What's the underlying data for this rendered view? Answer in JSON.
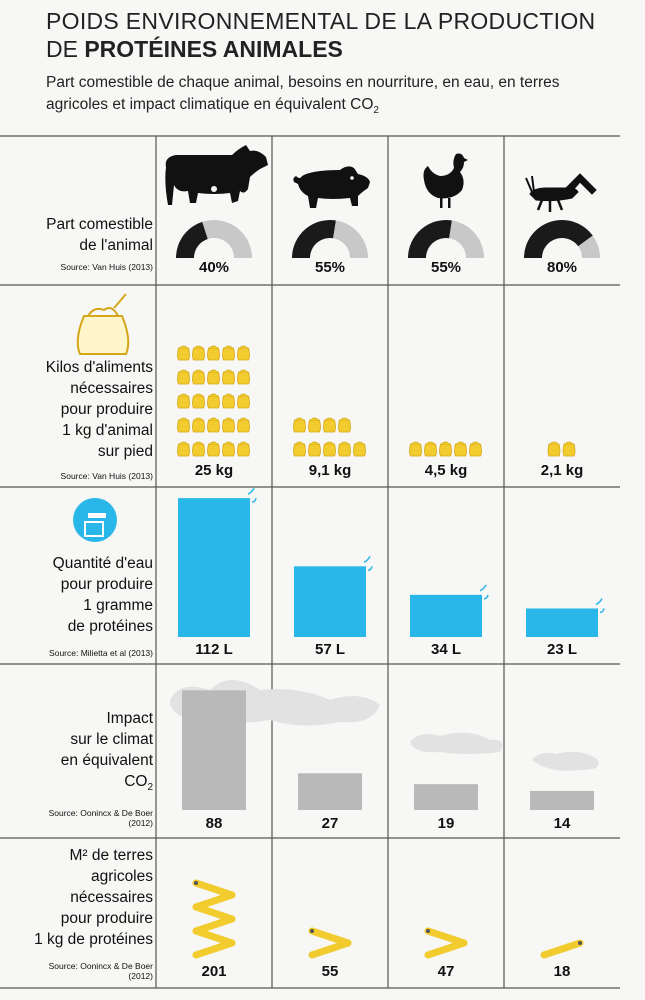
{
  "title_line1": "POIDS ENVIRONNEMENTAL DE LA PRODUCTION",
  "title_line2_prefix": "DE ",
  "title_line2_bold": "PROTÉINES ANIMALES",
  "subtitle_main": "Part comestible de chaque animal, besoins en nourriture, en eau, en terres agricoles et impact climatique en équivalent CO",
  "subtitle_sub": "2",
  "colors": {
    "water": "#29b6e8",
    "feed": "#f2cc2e",
    "feed_outline": "#d6a619",
    "climate": "#b9b9b9",
    "edible": "#1a1a1a",
    "nonedible": "#c8c8c8",
    "ruler": "#f2cc2e",
    "grid": "#555555"
  },
  "animals": [
    {
      "icon": "cow-icon"
    },
    {
      "icon": "pig-icon"
    },
    {
      "icon": "chicken-icon"
    },
    {
      "icon": "cricket-icon"
    }
  ],
  "rows": {
    "edible": {
      "label_lines": [
        "Part comestible",
        "de l'animal"
      ],
      "source": "Source: Van Huis (2013)",
      "icon": "gauge-icon"
    },
    "feed": {
      "label_lines": [
        "Kilos d'aliments",
        "nécessaires",
        "pour produire",
        "1 kg d'animal",
        "sur pied"
      ],
      "source": "Source: Van Huis (2013)",
      "icon": "feed-sack-icon"
    },
    "water": {
      "label_lines": [
        "Quantité d'eau",
        "pour produire",
        "1 gramme",
        "de protéines"
      ],
      "source": "Source: Milietta et al (2013)",
      "icon": "water-tap-icon"
    },
    "climate": {
      "label_lines": [
        "Impact",
        "sur le climat",
        "en équivalent",
        "CO"
      ],
      "label_sub": "2",
      "source_lines": [
        "Source: Oonincx & De Boer",
        "(2012)"
      ],
      "icon": "cloud-icon"
    },
    "land": {
      "label_lines": [
        "M² de terres",
        "agricoles",
        "nécessaires",
        "pour produire",
        "1 kg de protéines"
      ],
      "source_lines": [
        "Source: Oonincx & De Boer",
        "(2012)"
      ],
      "icon": "folding-ruler-icon"
    }
  },
  "chart_data": [
    {
      "type": "pie",
      "title": "Part comestible de l'animal",
      "categories": [
        "vache",
        "porc",
        "poulet",
        "grillon"
      ],
      "values": [
        40,
        55,
        55,
        80
      ],
      "labels": [
        "40%",
        "55%",
        "55%",
        "80%"
      ],
      "unit": "%"
    },
    {
      "type": "bar",
      "title": "Kilos d'aliments nécessaires pour produire 1 kg d'animal sur pied",
      "categories": [
        "vache",
        "porc",
        "poulet",
        "grillon"
      ],
      "values": [
        25,
        9.1,
        4.5,
        2.1
      ],
      "labels": [
        "25 kg",
        "9,1 kg",
        "4,5 kg",
        "2,1 kg"
      ],
      "unit": "kg"
    },
    {
      "type": "bar",
      "title": "Quantité d'eau pour produire 1 gramme de protéines",
      "categories": [
        "vache",
        "porc",
        "poulet",
        "grillon"
      ],
      "values": [
        112,
        57,
        34,
        23
      ],
      "labels": [
        "112 L",
        "57 L",
        "34 L",
        "23 L"
      ],
      "unit": "L"
    },
    {
      "type": "bar",
      "title": "Impact sur le climat en équivalent CO2",
      "categories": [
        "vache",
        "porc",
        "poulet",
        "grillon"
      ],
      "values": [
        88,
        27,
        19,
        14
      ],
      "labels": [
        "88",
        "27",
        "19",
        "14"
      ]
    },
    {
      "type": "bar",
      "title": "M² de terres agricoles nécessaires pour produire 1 kg de protéines",
      "categories": [
        "vache",
        "porc",
        "poulet",
        "grillon"
      ],
      "values": [
        201,
        55,
        47,
        18
      ],
      "labels": [
        "201",
        "55",
        "47",
        "18"
      ],
      "unit": "m²"
    }
  ]
}
